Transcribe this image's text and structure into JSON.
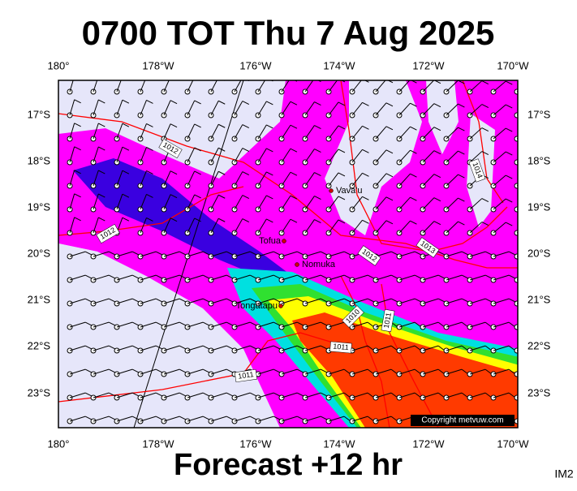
{
  "title": "0700 TOT Thu 7 Aug 2025",
  "footer": "Forecast +12 hr",
  "code": "IM2",
  "longitude_labels": [
    "180°",
    "178°W",
    "176°W",
    "174°W",
    "172°W",
    "170°W"
  ],
  "latitude_labels": [
    "17°S",
    "18°S",
    "19°S",
    "20°S",
    "21°S",
    "22°S",
    "23°S"
  ],
  "places": [
    "Vava'u",
    "Tofua",
    "Nomuka",
    "Tongatapu"
  ],
  "isobar_labels": [
    "1012",
    "1012",
    "1013",
    "1012",
    "1014",
    "1010",
    "1011",
    "1011",
    "1011"
  ],
  "copyright": "Copyright metvuw.com"
}
